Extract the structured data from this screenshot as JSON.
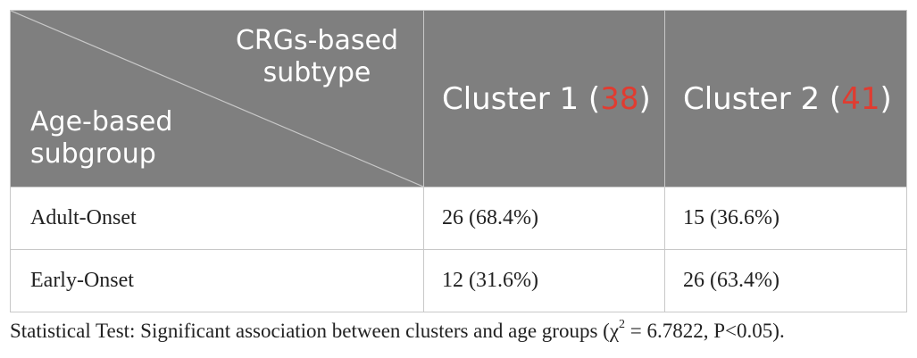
{
  "header": {
    "corner_top_line1": "CRGs-based",
    "corner_top_line2": "subtype",
    "corner_bottom_line1": "Age-based",
    "corner_bottom_line2": "subgroup",
    "columns": [
      {
        "label": "Cluster 1 (",
        "count": "38",
        "close": ")"
      },
      {
        "label": "Cluster 2 (",
        "count": "41",
        "close": ")"
      }
    ],
    "count_color": "#e03c31",
    "header_bg": "#7f7f7f"
  },
  "rows": [
    {
      "label": "Adult-Onset",
      "cells": [
        "26 (68.4%)",
        "15 (36.6%)"
      ]
    },
    {
      "label": "Early-Onset",
      "cells": [
        "12 (31.6%)",
        "26 (63.4%)"
      ]
    }
  ],
  "caption": {
    "prefix": "Statistical Test: Significant association between clusters and age groups (χ",
    "sup": "2",
    "suffix": " = 6.7822, P<0.05)."
  }
}
